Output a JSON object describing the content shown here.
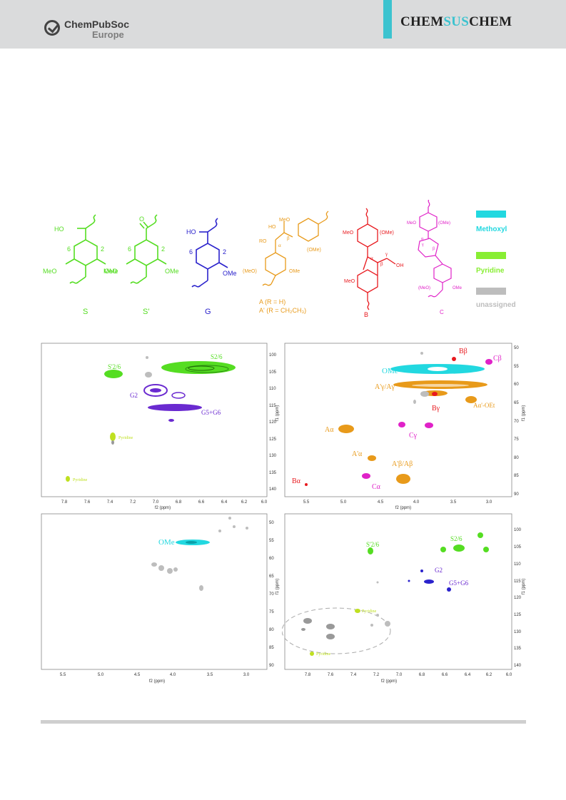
{
  "header": {
    "logo_line1": "ChemPubSoc",
    "logo_line2": "Europe",
    "journal_prefix": "CHEM",
    "journal_mid": "SUS",
    "journal_suffix": "CHEM"
  },
  "colors": {
    "S": "#55dd22",
    "G": "#2a22cc",
    "A": "#e89a1a",
    "B": "#e8191e",
    "C": "#e022c8",
    "methoxyl": "#22d8e0",
    "pyridine": "#88ee33",
    "unassigned": "#bdbdbd",
    "purple": "#6a2ad0"
  },
  "structures": {
    "S": {
      "label": "S",
      "oh": "HO",
      "ome_left": "MeO",
      "ome_right": "OMe",
      "pos6": "6",
      "pos2": "2"
    },
    "S_prime": {
      "label": "S'",
      "ome_left": "MeO",
      "ome_right": "OMe",
      "pos6": "6",
      "pos2": "2"
    },
    "G": {
      "label": "G",
      "oh": "HO",
      "ome_right": "OMe",
      "pos6": "6",
      "pos2": "2"
    },
    "A": {
      "label_a": "A (R = H)",
      "label_a_prime": "A' (R = CH₂CH₃)",
      "ho": "HO",
      "ro": "RO",
      "meo_top": "MeO",
      "ome_a": "(OMe)",
      "meo_b": "(MeO)",
      "ome_b": "OMe",
      "alpha": "α",
      "beta": "β"
    },
    "B": {
      "label": "B",
      "meo_top": "MeO",
      "ome_top": "(OMe)",
      "meo_bottom": "MeO",
      "oh": "OH",
      "alpha": "α",
      "beta": "β",
      "gamma": "γ"
    },
    "C": {
      "label": "C",
      "meo_top": "MeO",
      "ome_top": "(OMe)",
      "meo_b": "(MeO)",
      "ome_b": "OMe",
      "alpha": "α",
      "beta": "β",
      "gamma": "γ"
    }
  },
  "legend": [
    {
      "label": "Methoxyl",
      "color": "#22d8e0"
    },
    {
      "label": "Pyridine",
      "color": "#88ee33"
    },
    {
      "label": "unassigned",
      "color": "#bdbdbd"
    }
  ],
  "panels": {
    "top_left": {
      "x_ticks": [
        "7.8",
        "7.6",
        "7.4",
        "7.2",
        "7.0",
        "6.8",
        "6.6",
        "6.4",
        "6.2",
        "6.0"
      ],
      "y_ticks": [
        "100",
        "105",
        "110",
        "115",
        "120",
        "125",
        "130",
        "135",
        "140"
      ],
      "xlabel": "f2 (ppm)",
      "ylabel": "f1 (ppm)",
      "labels": {
        "s26": "S2/6",
        "sp26": "S'2/6",
        "g2": "G2",
        "g56": "G5+G6",
        "pyr1": "Pyridine",
        "pyr2": "Pyridine"
      }
    },
    "top_right": {
      "x_ticks": [
        "5.5",
        "5.0",
        "4.5",
        "4.0",
        "3.5",
        "3.0"
      ],
      "y_ticks": [
        "50",
        "55",
        "60",
        "65",
        "70",
        "75",
        "80",
        "85",
        "90"
      ],
      "xlabel": "f2 (ppm)",
      "ylabel": "f1 (ppm)",
      "labels": {
        "bbeta": "Bβ",
        "cbeta": "Cβ",
        "ome": "OMe",
        "agamma": "A'γ/Aγ",
        "bgamma": "Bγ",
        "aoet": "Aα'-OEt",
        "aalpha": "Aα",
        "cgamma": "Cγ",
        "apalpha": "A'α",
        "apbeta": "A'β/Aβ",
        "balpha": "Bα",
        "calpha": "Cα"
      }
    },
    "bottom_left": {
      "x_ticks": [
        "5.5",
        "5.0",
        "4.5",
        "4.0",
        "3.5",
        "3.0"
      ],
      "y_ticks": [
        "50",
        "55",
        "60",
        "65",
        "70",
        "75",
        "80",
        "85",
        "90"
      ],
      "xlabel": "f2 (ppm)",
      "ylabel": "f1 (ppm)",
      "labels": {
        "ome": "OMe"
      }
    },
    "bottom_right": {
      "x_ticks": [
        "7.8",
        "7.6",
        "7.4",
        "7.2",
        "7.0",
        "6.8",
        "6.6",
        "6.4",
        "6.2",
        "6.0"
      ],
      "y_ticks": [
        "100",
        "105",
        "110",
        "115",
        "120",
        "125",
        "130",
        "135",
        "140"
      ],
      "xlabel": "f2 (ppm)",
      "ylabel": "f1 (ppm)",
      "labels": {
        "sp26": "S'2/6",
        "s26": "S2/6",
        "g2": "G2",
        "g56": "G5+G6",
        "pyr1": "Pyridine",
        "pyr2": "Pyridine"
      }
    }
  }
}
